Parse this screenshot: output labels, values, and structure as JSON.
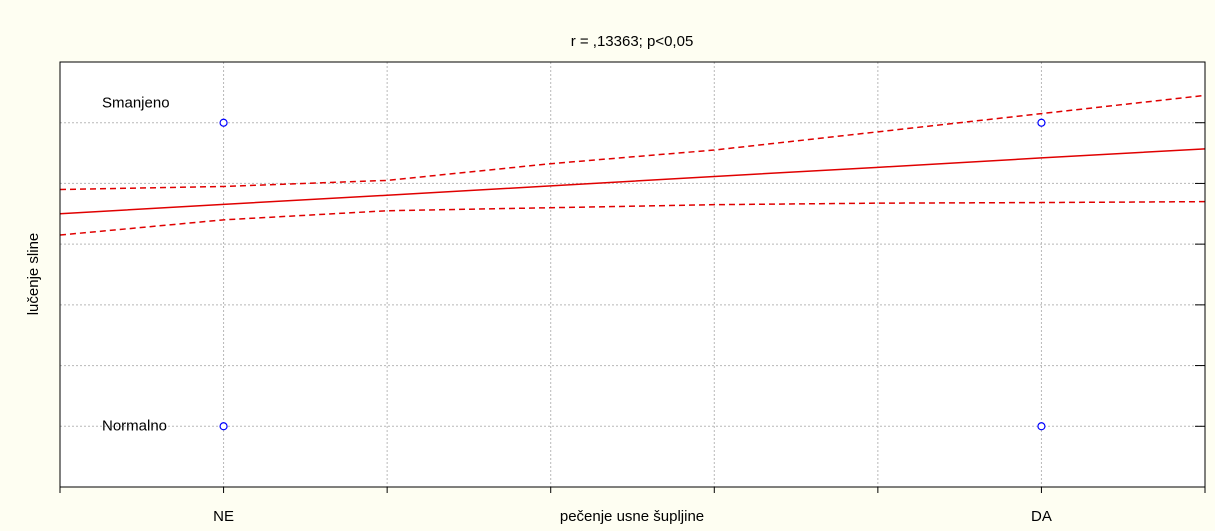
{
  "chart_data": {
    "type": "scatter",
    "title": "r = ,13363; p<0,05",
    "x_label": "pečenje usne šupljine",
    "y_label": "lučenje sline",
    "xlim": [
      -0.2,
      1.2
    ],
    "ylim": [
      -0.2,
      1.2
    ],
    "xticks": [
      {
        "value": 0,
        "label": "NE"
      },
      {
        "value": 0.2,
        "label": null
      },
      {
        "value": 0.4,
        "label": null
      },
      {
        "value": 0.6,
        "label": null
      },
      {
        "value": 0.8,
        "label": null
      },
      {
        "value": 1,
        "label": "DA"
      }
    ],
    "yticks": [
      {
        "value": 0,
        "label": "Normalno"
      },
      {
        "value": 0.2,
        "label": null
      },
      {
        "value": 0.4,
        "label": null
      },
      {
        "value": 0.6,
        "label": null
      },
      {
        "value": 0.8,
        "label": null
      },
      {
        "value": 1,
        "label": "Smanjeno"
      }
    ],
    "grid": true,
    "points": {
      "color": "#0000ff",
      "x": [
        0,
        0,
        1,
        1
      ],
      "values": [
        0,
        1,
        0,
        1
      ]
    },
    "fit_lines": [
      {
        "style": "solid",
        "color": "#e00000",
        "x": [
          -0.2,
          0,
          0.2,
          0.4,
          0.6,
          0.8,
          1,
          1.2
        ],
        "values": [
          0.7,
          0.731,
          0.761,
          0.792,
          0.823,
          0.853,
          0.884,
          0.914
        ]
      },
      {
        "style": "dashed",
        "color": "#e00000",
        "x": [
          -0.2,
          0,
          0.2,
          0.4,
          0.6,
          0.8,
          1,
          1.2
        ],
        "values": [
          0.78,
          0.79,
          0.81,
          0.865,
          0.91,
          0.97,
          1.03,
          1.09
        ]
      },
      {
        "style": "dashed",
        "color": "#e00000",
        "x": [
          -0.2,
          0,
          0.2,
          0.4,
          0.6,
          0.8,
          1,
          1.2
        ],
        "values": [
          0.63,
          0.68,
          0.71,
          0.72,
          0.73,
          0.735,
          0.737,
          0.74
        ]
      }
    ]
  }
}
